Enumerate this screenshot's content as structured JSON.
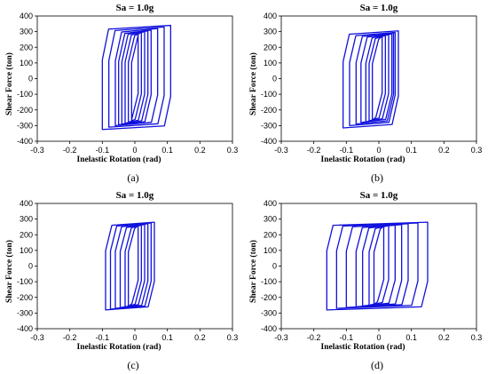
{
  "chart_data": [
    {
      "type": "line",
      "panel": "a",
      "title": "Sa = 1.0g",
      "caption": "(a)",
      "xlabel": "Inelastic Rotation (rad)",
      "ylabel": "Shear Force (ton)",
      "xlim": [
        -0.3,
        0.3
      ],
      "ylim": [
        -400,
        400
      ],
      "xticks": [
        "-0.3",
        "-0.2",
        "-0.1",
        "0",
        "0.1",
        "0.2",
        "0.3"
      ],
      "yticks": [
        "400",
        "300",
        "200",
        "100",
        "0",
        "-100",
        "-200",
        "-300",
        "-400"
      ],
      "color": "#1010dd",
      "loops": [
        {
          "x_min": -0.1,
          "x_max": 0.11,
          "f_pos": 340,
          "f_neg": -325
        },
        {
          "x_min": -0.08,
          "x_max": 0.09,
          "f_pos": 330,
          "f_neg": -310
        },
        {
          "x_min": -0.06,
          "x_max": 0.07,
          "f_pos": 320,
          "f_neg": -300
        },
        {
          "x_min": -0.05,
          "x_max": 0.05,
          "f_pos": 310,
          "f_neg": -295
        },
        {
          "x_min": -0.04,
          "x_max": 0.04,
          "f_pos": 305,
          "f_neg": -290
        },
        {
          "x_min": -0.03,
          "x_max": 0.03,
          "f_pos": 300,
          "f_neg": -285
        },
        {
          "x_min": -0.02,
          "x_max": 0.02,
          "f_pos": 295,
          "f_neg": -280
        },
        {
          "x_min": -0.01,
          "x_max": 0.01,
          "f_pos": 290,
          "f_neg": -275
        }
      ]
    },
    {
      "type": "line",
      "panel": "b",
      "title": "Sa = 1.0g",
      "caption": "(b)",
      "xlabel": "Inelastic Rotation (rad)",
      "ylabel": "Shear Force (ton)",
      "xlim": [
        -0.3,
        0.3
      ],
      "ylim": [
        -400,
        400
      ],
      "xticks": [
        "-0.3",
        "-0.2",
        "-0.1",
        "0",
        "0.1",
        "0.2",
        "0.3"
      ],
      "yticks": [
        "400",
        "300",
        "200",
        "100",
        "0",
        "-100",
        "-200",
        "-300",
        "-400"
      ],
      "color": "#1010dd",
      "loops": [
        {
          "x_min": -0.11,
          "x_max": 0.06,
          "f_pos": 305,
          "f_neg": -315
        },
        {
          "x_min": -0.09,
          "x_max": 0.05,
          "f_pos": 295,
          "f_neg": -300
        },
        {
          "x_min": -0.07,
          "x_max": 0.045,
          "f_pos": 290,
          "f_neg": -290
        },
        {
          "x_min": -0.055,
          "x_max": 0.04,
          "f_pos": 285,
          "f_neg": -280
        },
        {
          "x_min": -0.04,
          "x_max": 0.03,
          "f_pos": 280,
          "f_neg": -275
        },
        {
          "x_min": -0.03,
          "x_max": 0.02,
          "f_pos": 275,
          "f_neg": -270
        },
        {
          "x_min": -0.02,
          "x_max": 0.01,
          "f_pos": 270,
          "f_neg": -265
        }
      ]
    },
    {
      "type": "line",
      "panel": "c",
      "title": "Sa = 1.0g",
      "caption": "(c)",
      "xlabel": "Inelastic Rotation (rad)",
      "ylabel": "Shear Force (ton)",
      "xlim": [
        -0.3,
        0.3
      ],
      "ylim": [
        -400,
        400
      ],
      "xticks": [
        "-0.3",
        "-0.2",
        "-0.1",
        "0",
        "0.1",
        "0.2",
        "0.3"
      ],
      "yticks": [
        "400",
        "300",
        "200",
        "100",
        "0",
        "-100",
        "-200",
        "-300",
        "-400"
      ],
      "color": "#1010dd",
      "loops": [
        {
          "x_min": -0.09,
          "x_max": 0.06,
          "f_pos": 280,
          "f_neg": -280
        },
        {
          "x_min": -0.075,
          "x_max": 0.05,
          "f_pos": 275,
          "f_neg": -275
        },
        {
          "x_min": -0.06,
          "x_max": 0.04,
          "f_pos": 270,
          "f_neg": -270
        },
        {
          "x_min": -0.045,
          "x_max": 0.03,
          "f_pos": 265,
          "f_neg": -265
        },
        {
          "x_min": -0.03,
          "x_max": 0.02,
          "f_pos": 262,
          "f_neg": -262
        },
        {
          "x_min": -0.02,
          "x_max": 0.01,
          "f_pos": 258,
          "f_neg": -258
        }
      ]
    },
    {
      "type": "line",
      "panel": "d",
      "title": "Sa = 1.0g",
      "caption": "(d)",
      "xlabel": "Inelastic Rotation (rad)",
      "ylabel": "Shear Force (ton)",
      "xlim": [
        -0.3,
        0.3
      ],
      "ylim": [
        -400,
        400
      ],
      "xticks": [
        "-0.3",
        "-0.2",
        "-0.1",
        "0",
        "0.1",
        "0.2",
        "0.3"
      ],
      "yticks": [
        "400",
        "300",
        "200",
        "100",
        "0",
        "-100",
        "-200",
        "-300",
        "-400"
      ],
      "color": "#1010dd",
      "loops": [
        {
          "x_min": -0.16,
          "x_max": 0.15,
          "f_pos": 280,
          "f_neg": -280
        },
        {
          "x_min": -0.13,
          "x_max": 0.12,
          "f_pos": 275,
          "f_neg": -270
        },
        {
          "x_min": -0.1,
          "x_max": 0.09,
          "f_pos": 270,
          "f_neg": -265
        },
        {
          "x_min": -0.07,
          "x_max": 0.07,
          "f_pos": 265,
          "f_neg": -260
        },
        {
          "x_min": -0.05,
          "x_max": 0.05,
          "f_pos": 262,
          "f_neg": -255
        },
        {
          "x_min": -0.03,
          "x_max": 0.03,
          "f_pos": 258,
          "f_neg": -250
        },
        {
          "x_min": -0.015,
          "x_max": 0.015,
          "f_pos": 255,
          "f_neg": -245
        }
      ]
    }
  ]
}
